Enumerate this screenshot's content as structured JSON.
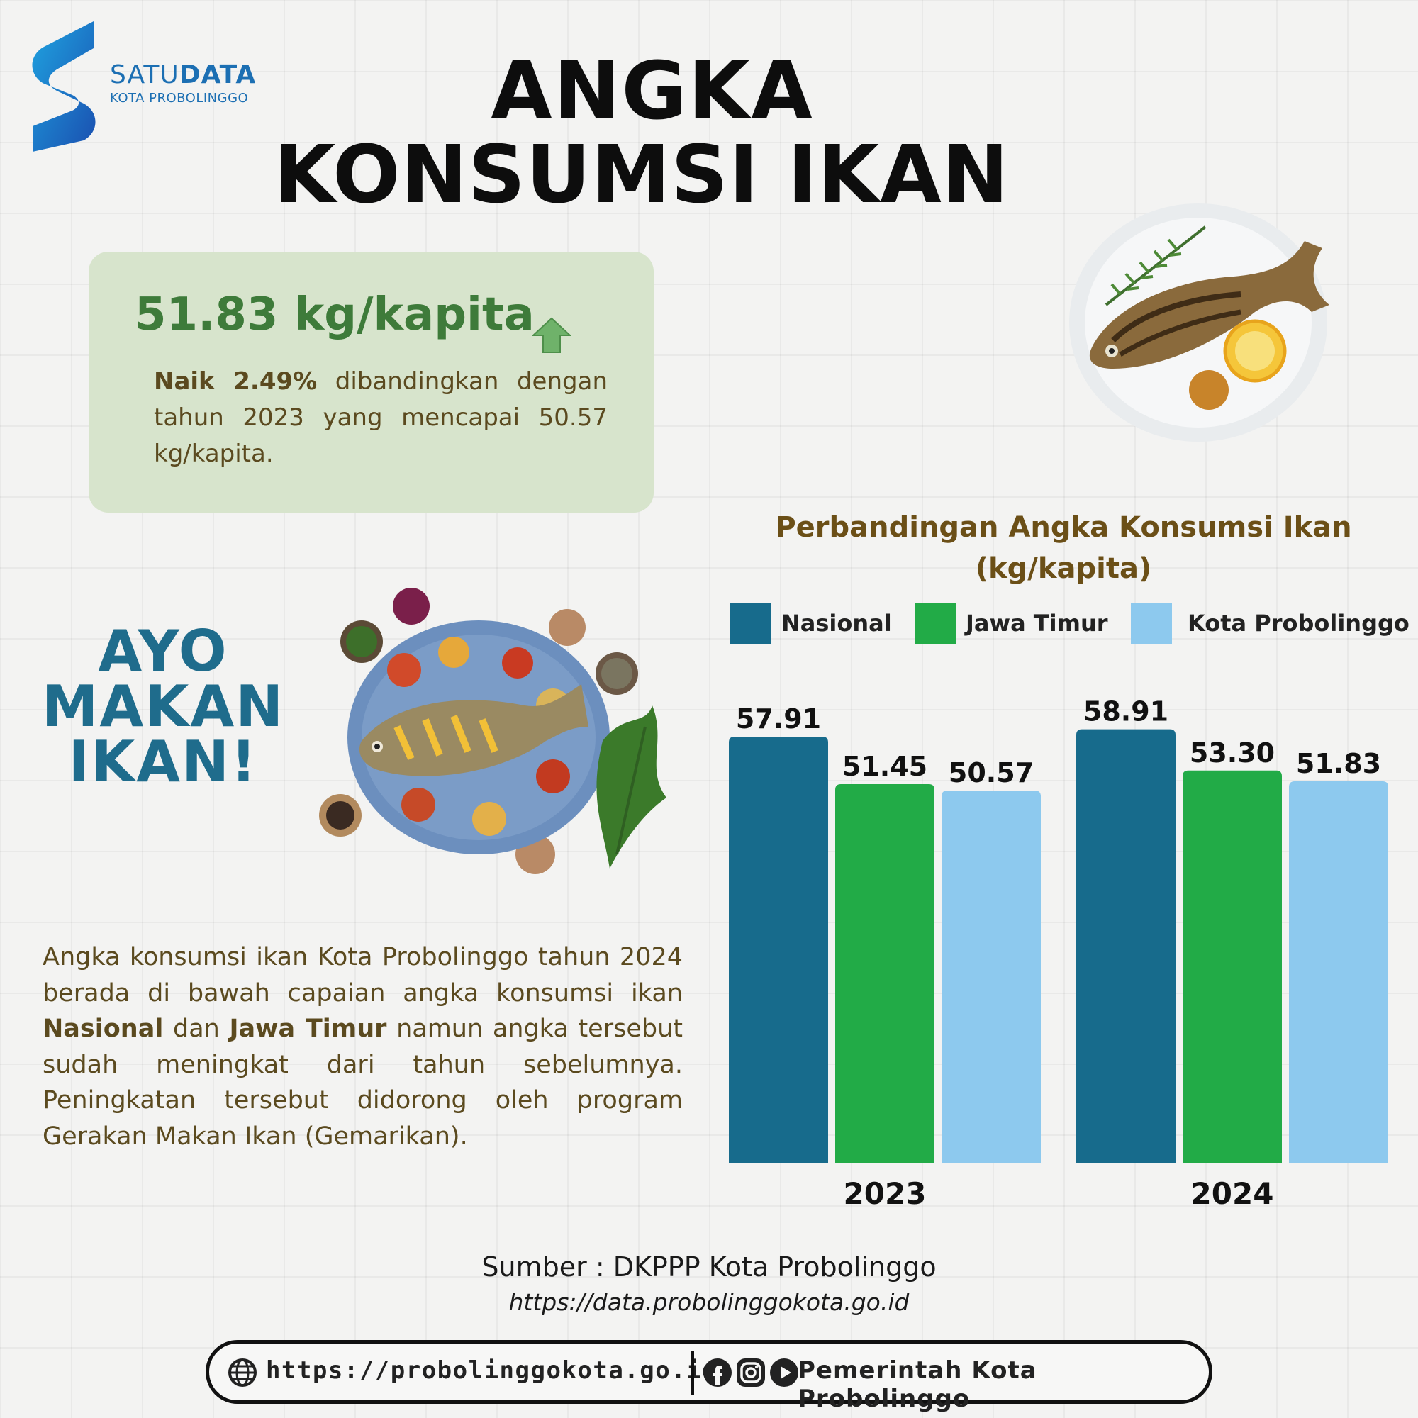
{
  "logo": {
    "brand_light": "SATU",
    "brand_bold": "DATA",
    "subtitle": "KOTA PROBOLINGGO"
  },
  "title": {
    "line1": "ANGKA",
    "line2": "KONSUMSI IKAN"
  },
  "stat": {
    "value": "51.83 kg/kapita",
    "desc_bold": "Naik 2.49%",
    "desc_rest": " dibandingkan dengan tahun 2023 yang mencapai 50.57 kg/kapita."
  },
  "slogan": {
    "line1": "AYO",
    "line2": "MAKAN",
    "line3": "IKAN!"
  },
  "paragraph": {
    "p1": "Angka konsumsi ikan Kota Probolinggo tahun 2024 berada di bawah capaian angka konsumsi ikan ",
    "b1": "Nasional",
    "p2": " dan ",
    "b2": "Jawa Timur",
    "p3": " namun angka tersebut sudah meningkat dari tahun sebelumnya. Peningkatan tersebut didorong oleh program Gerakan Makan Ikan (Gemarikan)."
  },
  "chart_data": {
    "type": "bar",
    "title": "Perbandingan Angka Konsumsi Ikan",
    "subtitle": "(kg/kapita)",
    "categories": [
      "2023",
      "2024"
    ],
    "series": [
      {
        "name": "Nasional",
        "values": [
          57.91,
          58.91
        ],
        "labels": [
          "57.91",
          "58.91"
        ],
        "color": "#176b8c"
      },
      {
        "name": "Jawa Timur",
        "values": [
          51.45,
          53.3
        ],
        "labels": [
          "51.45",
          "53.30"
        ],
        "color": "#22ab47"
      },
      {
        "name": "Kota Probolinggo",
        "values": [
          50.57,
          51.83
        ],
        "labels": [
          "50.57",
          "51.83"
        ],
        "color": "#8dc9ee"
      }
    ],
    "ylim": [
      0,
      62
    ],
    "grid": false,
    "legend": "top"
  },
  "source": {
    "label": "Sumber : DKPPP Kota Probolinggo",
    "url": "https://data.probolinggokota.go.id"
  },
  "footer": {
    "website": "https://probolinggokota.go.id",
    "org": "Pemerintah Kota Probolinggo"
  },
  "icons": [
    "globe-icon",
    "facebook-icon",
    "instagram-icon",
    "youtube-icon",
    "up-arrow-icon"
  ]
}
